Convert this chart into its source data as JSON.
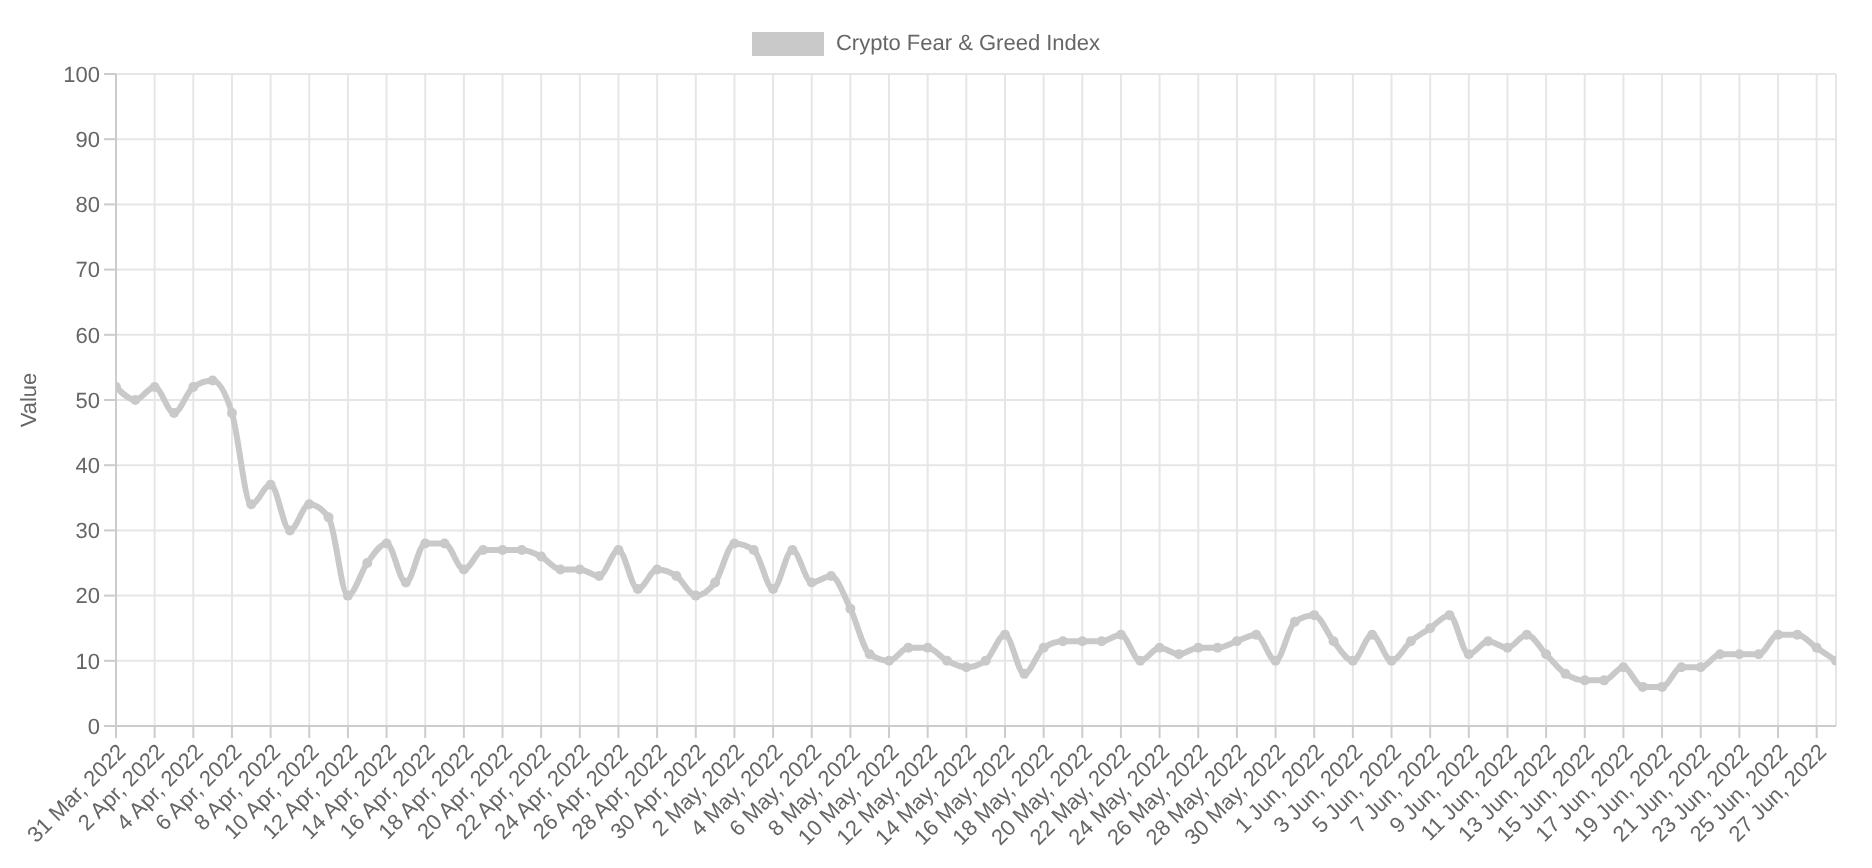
{
  "chart_data": {
    "type": "line",
    "ylabel": "Value",
    "categories": [
      "31 Mar, 2022",
      null,
      "2 Apr, 2022",
      null,
      "4 Apr, 2022",
      null,
      "6 Apr, 2022",
      null,
      "8 Apr, 2022",
      null,
      "10 Apr, 2022",
      null,
      "12 Apr, 2022",
      null,
      "14 Apr, 2022",
      null,
      "16 Apr, 2022",
      null,
      "18 Apr, 2022",
      null,
      "20 Apr, 2022",
      null,
      "22 Apr, 2022",
      null,
      "24 Apr, 2022",
      null,
      "26 Apr, 2022",
      null,
      "28 Apr, 2022",
      null,
      "30 Apr, 2022",
      null,
      "2 May, 2022",
      null,
      "4 May, 2022",
      null,
      "6 May, 2022",
      null,
      "8 May, 2022",
      null,
      "10 May, 2022",
      null,
      "12 May, 2022",
      null,
      "14 May, 2022",
      null,
      "16 May, 2022",
      null,
      "18 May, 2022",
      null,
      "20 May, 2022",
      null,
      "22 May, 2022",
      null,
      "24 May, 2022",
      null,
      "26 May, 2022",
      null,
      "28 May, 2022",
      null,
      "30 May, 2022",
      null,
      "1 Jun, 2022",
      null,
      "3 Jun, 2022",
      null,
      "5 Jun, 2022",
      null,
      "7 Jun, 2022",
      null,
      "9 Jun, 2022",
      null,
      "11 Jun, 2022",
      null,
      "13 Jun, 2022",
      null,
      "15 Jun, 2022",
      null,
      "17 Jun, 2022",
      null,
      "19 Jun, 2022",
      null,
      "21 Jun, 2022",
      null,
      "23 Jun, 2022",
      null,
      "25 Jun, 2022",
      null,
      "27 Jun, 2022",
      null
    ],
    "series": [
      {
        "name": "Crypto Fear & Greed Index",
        "color": "#c9c9c9",
        "values": [
          52,
          50,
          52,
          48,
          52,
          53,
          48,
          34,
          37,
          30,
          34,
          32,
          20,
          25,
          28,
          22,
          28,
          28,
          24,
          27,
          27,
          27,
          26,
          24,
          24,
          23,
          27,
          21,
          24,
          23,
          20,
          22,
          28,
          27,
          21,
          27,
          22,
          23,
          18,
          11,
          10,
          12,
          12,
          10,
          9,
          10,
          14,
          8,
          12,
          13,
          13,
          13,
          14,
          10,
          12,
          11,
          12,
          12,
          13,
          14,
          10,
          16,
          17,
          13,
          10,
          14,
          10,
          13,
          15,
          17,
          11,
          13,
          12,
          14,
          11,
          8,
          7,
          7,
          9,
          6,
          6,
          9,
          9,
          11,
          11,
          11,
          14,
          14,
          12,
          10
        ]
      }
    ],
    "ylim": [
      0,
      100
    ],
    "yticks": [
      0,
      10,
      20,
      30,
      40,
      50,
      60,
      70,
      80,
      90,
      100
    ],
    "grid": true,
    "legend": "top",
    "marker": "circle",
    "line_style": "solid"
  }
}
